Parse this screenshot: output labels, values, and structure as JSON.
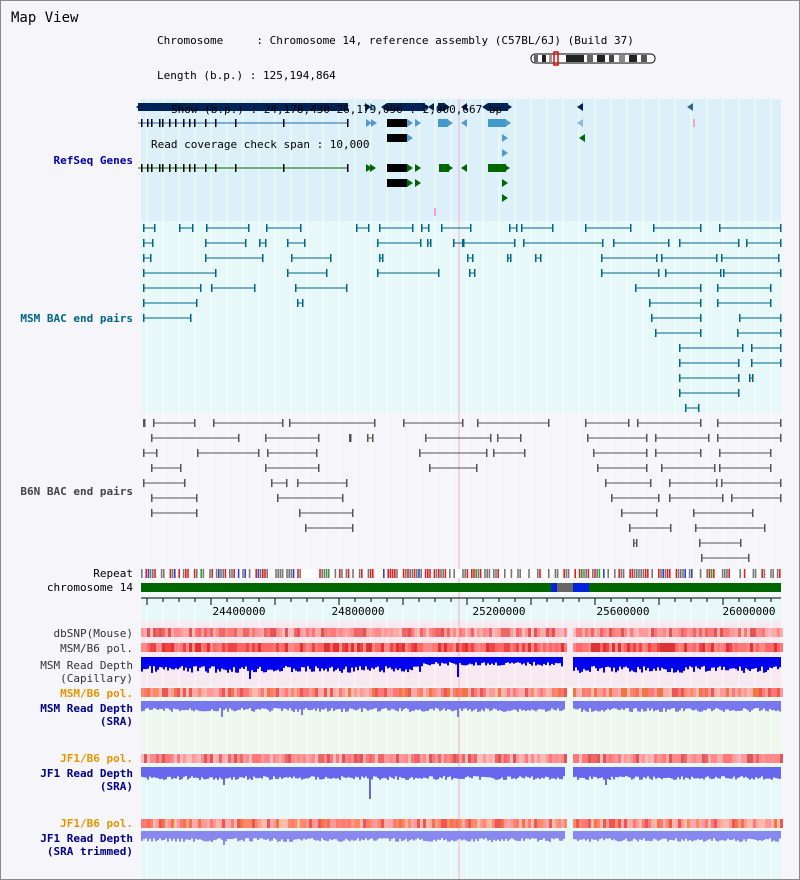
{
  "view_title": "Map View",
  "info": {
    "chromosome": "Chromosome     : Chromosome 14, reference assembly (C57BL/6J) (Build 37)",
    "length": "Length (b.p.) : 125,194,864",
    "show": "Show (b.p.) : 24,178,430-26,179,096 : 2,000,667 bp",
    "coverage": "Read coverage check span : 10,000"
  },
  "tracks": {
    "refseq": "RefSeq Genes",
    "msm_bac": "MSM BAC end pairs",
    "b6n_bac": "B6N BAC end pairs",
    "repeat": "Repeat",
    "chromosome": "chromosome 14",
    "dbsnp": "dbSNP(Mouse)",
    "msm_b6_pol": "MSM/B6 pol.",
    "msm_depth_cap_1": "MSM Read Depth",
    "msm_depth_cap_2": "(Capillary)",
    "msm_b6_pol_sra": "MSM/B6 pol.",
    "msm_depth_sra_1": "MSM Read Depth",
    "msm_depth_sra_2": "(SRA)",
    "jf1_b6_pol": "JF1/B6 pol.",
    "jf1_depth_1": "JF1 Read Depth",
    "jf1_depth_2": "(SRA)",
    "jf1_b6_pol_trim": "JF1/B6 pol.",
    "jf1_depth_trim_1": "JF1 Read Depth",
    "jf1_depth_trim_2": "(SRA trimmed)"
  },
  "ruler": {
    "ticks": [
      "24400000",
      "24800000",
      "25200000",
      "25600000",
      "26000000"
    ]
  },
  "colors": {
    "refseq_label": "#0000aa",
    "msm_label": "#006688",
    "b6n_label": "#444444",
    "orange_label": "#e69500",
    "blue_label": "#000088",
    "gene_dark": "#002255",
    "gene_green": "#006600",
    "chrom_green": "#006600",
    "depth_blue": "#0000ee",
    "depth_light": "#7777ee"
  }
}
